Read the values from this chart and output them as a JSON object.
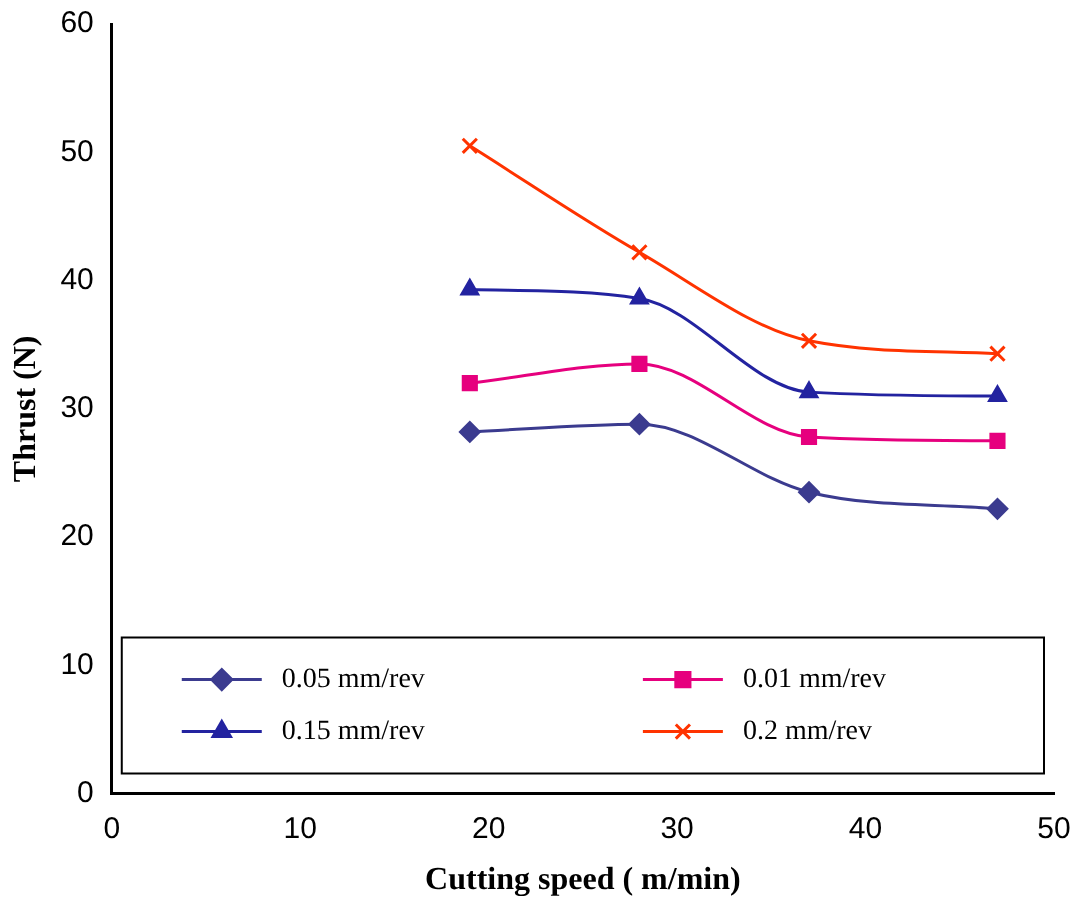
{
  "chart_data": {
    "type": "line",
    "xlabel": "Cutting speed ( m/min)",
    "ylabel": "Thrust (N)",
    "x": [
      19,
      28,
      37,
      47
    ],
    "series": [
      {
        "name": "0.05 mm/rev",
        "color": "#3b3b8f",
        "marker": "diamond",
        "values": [
          28.2,
          28.8,
          23.5,
          22.2
        ]
      },
      {
        "name": "0.01 mm/rev",
        "color": "#e6007e",
        "marker": "square",
        "values": [
          32,
          33.5,
          27.8,
          27.5
        ]
      },
      {
        "name": "0.15 mm/rev",
        "color": "#2323a0",
        "marker": "triangle",
        "values": [
          39.3,
          38.6,
          31.3,
          31
        ]
      },
      {
        "name": "0.2 mm/rev",
        "color": "#ff3300",
        "marker": "cross",
        "values": [
          50.5,
          42.2,
          35.3,
          34.3
        ]
      }
    ],
    "xlim": [
      0,
      50
    ],
    "xticks": [
      0,
      10,
      20,
      30,
      40,
      50
    ],
    "ylim": [
      0,
      60
    ],
    "yticks": [
      0,
      10,
      20,
      30,
      40,
      50,
      60
    ],
    "grid": false,
    "legend": "bottom"
  }
}
